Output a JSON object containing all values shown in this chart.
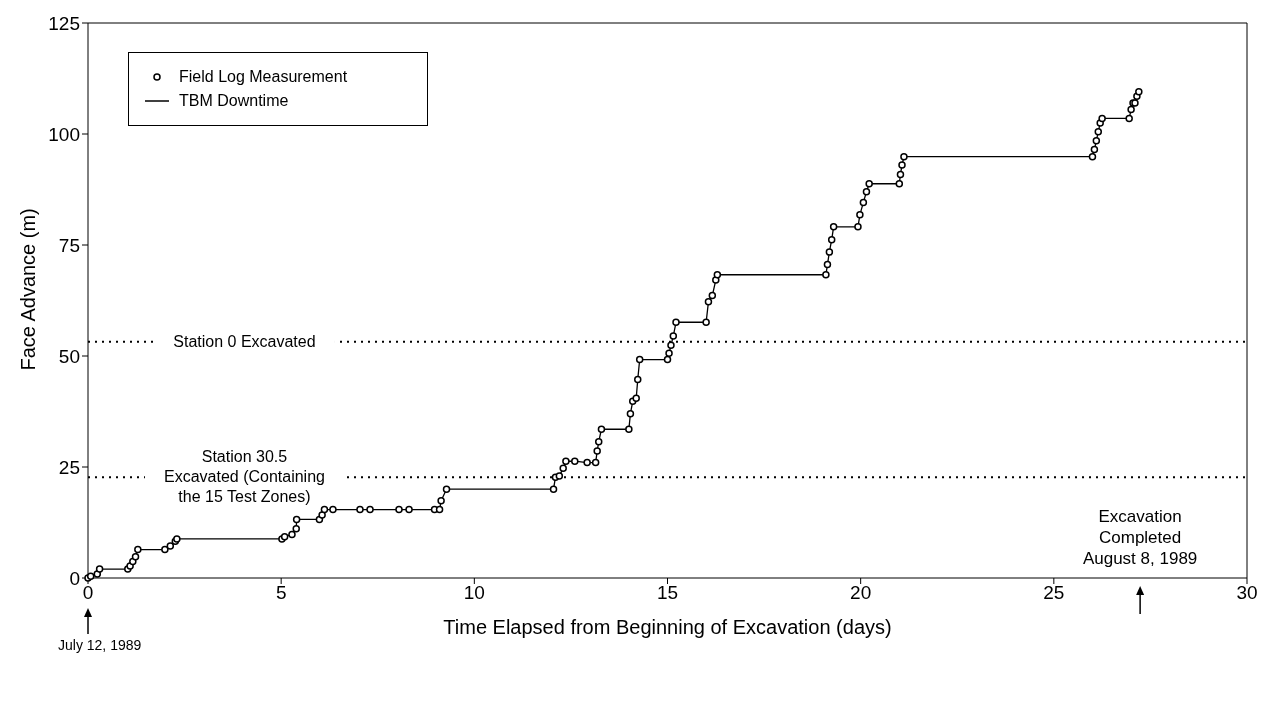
{
  "chart_data": {
    "type": "line",
    "xlabel": "Time Elapsed from Beginning of Excavation (days)",
    "ylabel": "Face Advance (m)",
    "x": [
      0,
      0.07,
      0.24,
      0.3,
      1.03,
      1.09,
      1.16,
      1.23,
      1.29,
      1.99,
      2.13,
      2.26,
      2.3,
      5.02,
      5.09,
      5.28,
      5.39,
      5.4,
      5.99,
      6.06,
      6.12,
      6.34,
      7.04,
      7.3,
      8.05,
      8.31,
      8.97,
      9.1,
      9.14,
      9.28,
      12.05,
      12.1,
      12.2,
      12.3,
      12.37,
      12.6,
      12.92,
      13.14,
      13.18,
      13.22,
      13.29,
      14.0,
      14.04,
      14.1,
      14.19,
      14.23,
      14.28,
      15.0,
      15.04,
      15.09,
      15.15,
      15.22,
      16.0,
      16.06,
      16.16,
      16.25,
      16.29,
      19.1,
      19.14,
      19.19,
      19.25,
      19.3,
      19.93,
      19.98,
      20.07,
      20.15,
      20.22,
      21.0,
      21.03,
      21.07,
      21.12,
      26.0,
      26.05,
      26.1,
      26.15,
      26.2,
      26.25,
      26.95,
      27.0,
      27.05,
      27.1,
      27.15,
      27.2
    ],
    "series": [
      {
        "name": "Field Log Measurement",
        "type": "scatter",
        "marker": "circle",
        "color": "#000000",
        "values": [
          0,
          0.4,
          0.9,
          2.0,
          2.0,
          2.7,
          3.7,
          4.8,
          6.4,
          6.4,
          7.2,
          8.3,
          8.8,
          8.8,
          9.3,
          9.8,
          11.1,
          13.2,
          13.2,
          14.2,
          15.4,
          15.4,
          15.4,
          15.4,
          15.4,
          15.4,
          15.4,
          15.4,
          17.4,
          20.0,
          20.0,
          22.7,
          23.0,
          24.7,
          26.3,
          26.3,
          26.0,
          26.0,
          28.6,
          30.7,
          33.5,
          33.5,
          37.0,
          39.8,
          40.5,
          44.7,
          49.2,
          49.2,
          50.6,
          52.4,
          54.5,
          57.6,
          57.6,
          62.2,
          63.6,
          67.1,
          68.3,
          68.3,
          70.6,
          73.4,
          76.2,
          79.1,
          79.1,
          81.8,
          84.6,
          87.0,
          88.8,
          88.8,
          90.9,
          93.0,
          94.9,
          94.9,
          96.5,
          98.5,
          100.5,
          102.5,
          103.5,
          103.5,
          105.5,
          107.0,
          107.0,
          108.5,
          109.5
        ]
      },
      {
        "name": "TBM Downtime",
        "type": "line",
        "marker": "none",
        "color": "#000000",
        "values": [
          0,
          0.4,
          0.9,
          2.0,
          2.0,
          2.7,
          3.7,
          4.8,
          6.4,
          6.4,
          7.2,
          8.3,
          8.8,
          8.8,
          9.3,
          9.8,
          11.1,
          13.2,
          13.2,
          14.2,
          15.4,
          15.4,
          15.4,
          15.4,
          15.4,
          15.4,
          15.4,
          15.4,
          17.4,
          20.0,
          20.0,
          22.7,
          23.0,
          24.7,
          26.3,
          26.3,
          26.0,
          26.0,
          28.6,
          30.7,
          33.5,
          33.5,
          37.0,
          39.8,
          40.5,
          44.7,
          49.2,
          49.2,
          50.6,
          52.4,
          54.5,
          57.6,
          57.6,
          62.2,
          63.6,
          67.1,
          68.3,
          68.3,
          70.6,
          73.4,
          76.2,
          79.1,
          79.1,
          81.8,
          84.6,
          87.0,
          88.8,
          88.8,
          90.9,
          93.0,
          94.9,
          94.9,
          96.5,
          98.5,
          100.5,
          102.5,
          103.5,
          103.5,
          105.5,
          107.0,
          107.0,
          108.5,
          109.5
        ]
      }
    ],
    "xlim": [
      0,
      30
    ],
    "xticks": [
      0,
      5,
      10,
      15,
      20,
      25,
      30
    ],
    "ylim": [
      0,
      125
    ],
    "yticks": [
      0,
      25,
      50,
      75,
      100,
      125
    ],
    "ref_lines": [
      {
        "axis": "y",
        "value": 53.2,
        "label": "Station 0 Excavated",
        "line_style": "dotted",
        "color": "#000000"
      },
      {
        "axis": "y",
        "value": 22.7,
        "label": "Station 30.5\nExcavated (Containing\nthe 15 Test Zones)",
        "line_style": "dotted",
        "color": "#000000"
      }
    ],
    "annotations": [
      "July 12, 1989",
      "Excavation\nCompleted\nAugust 8, 1989"
    ],
    "legend": "top left",
    "line_style": "solid",
    "grid": false
  }
}
